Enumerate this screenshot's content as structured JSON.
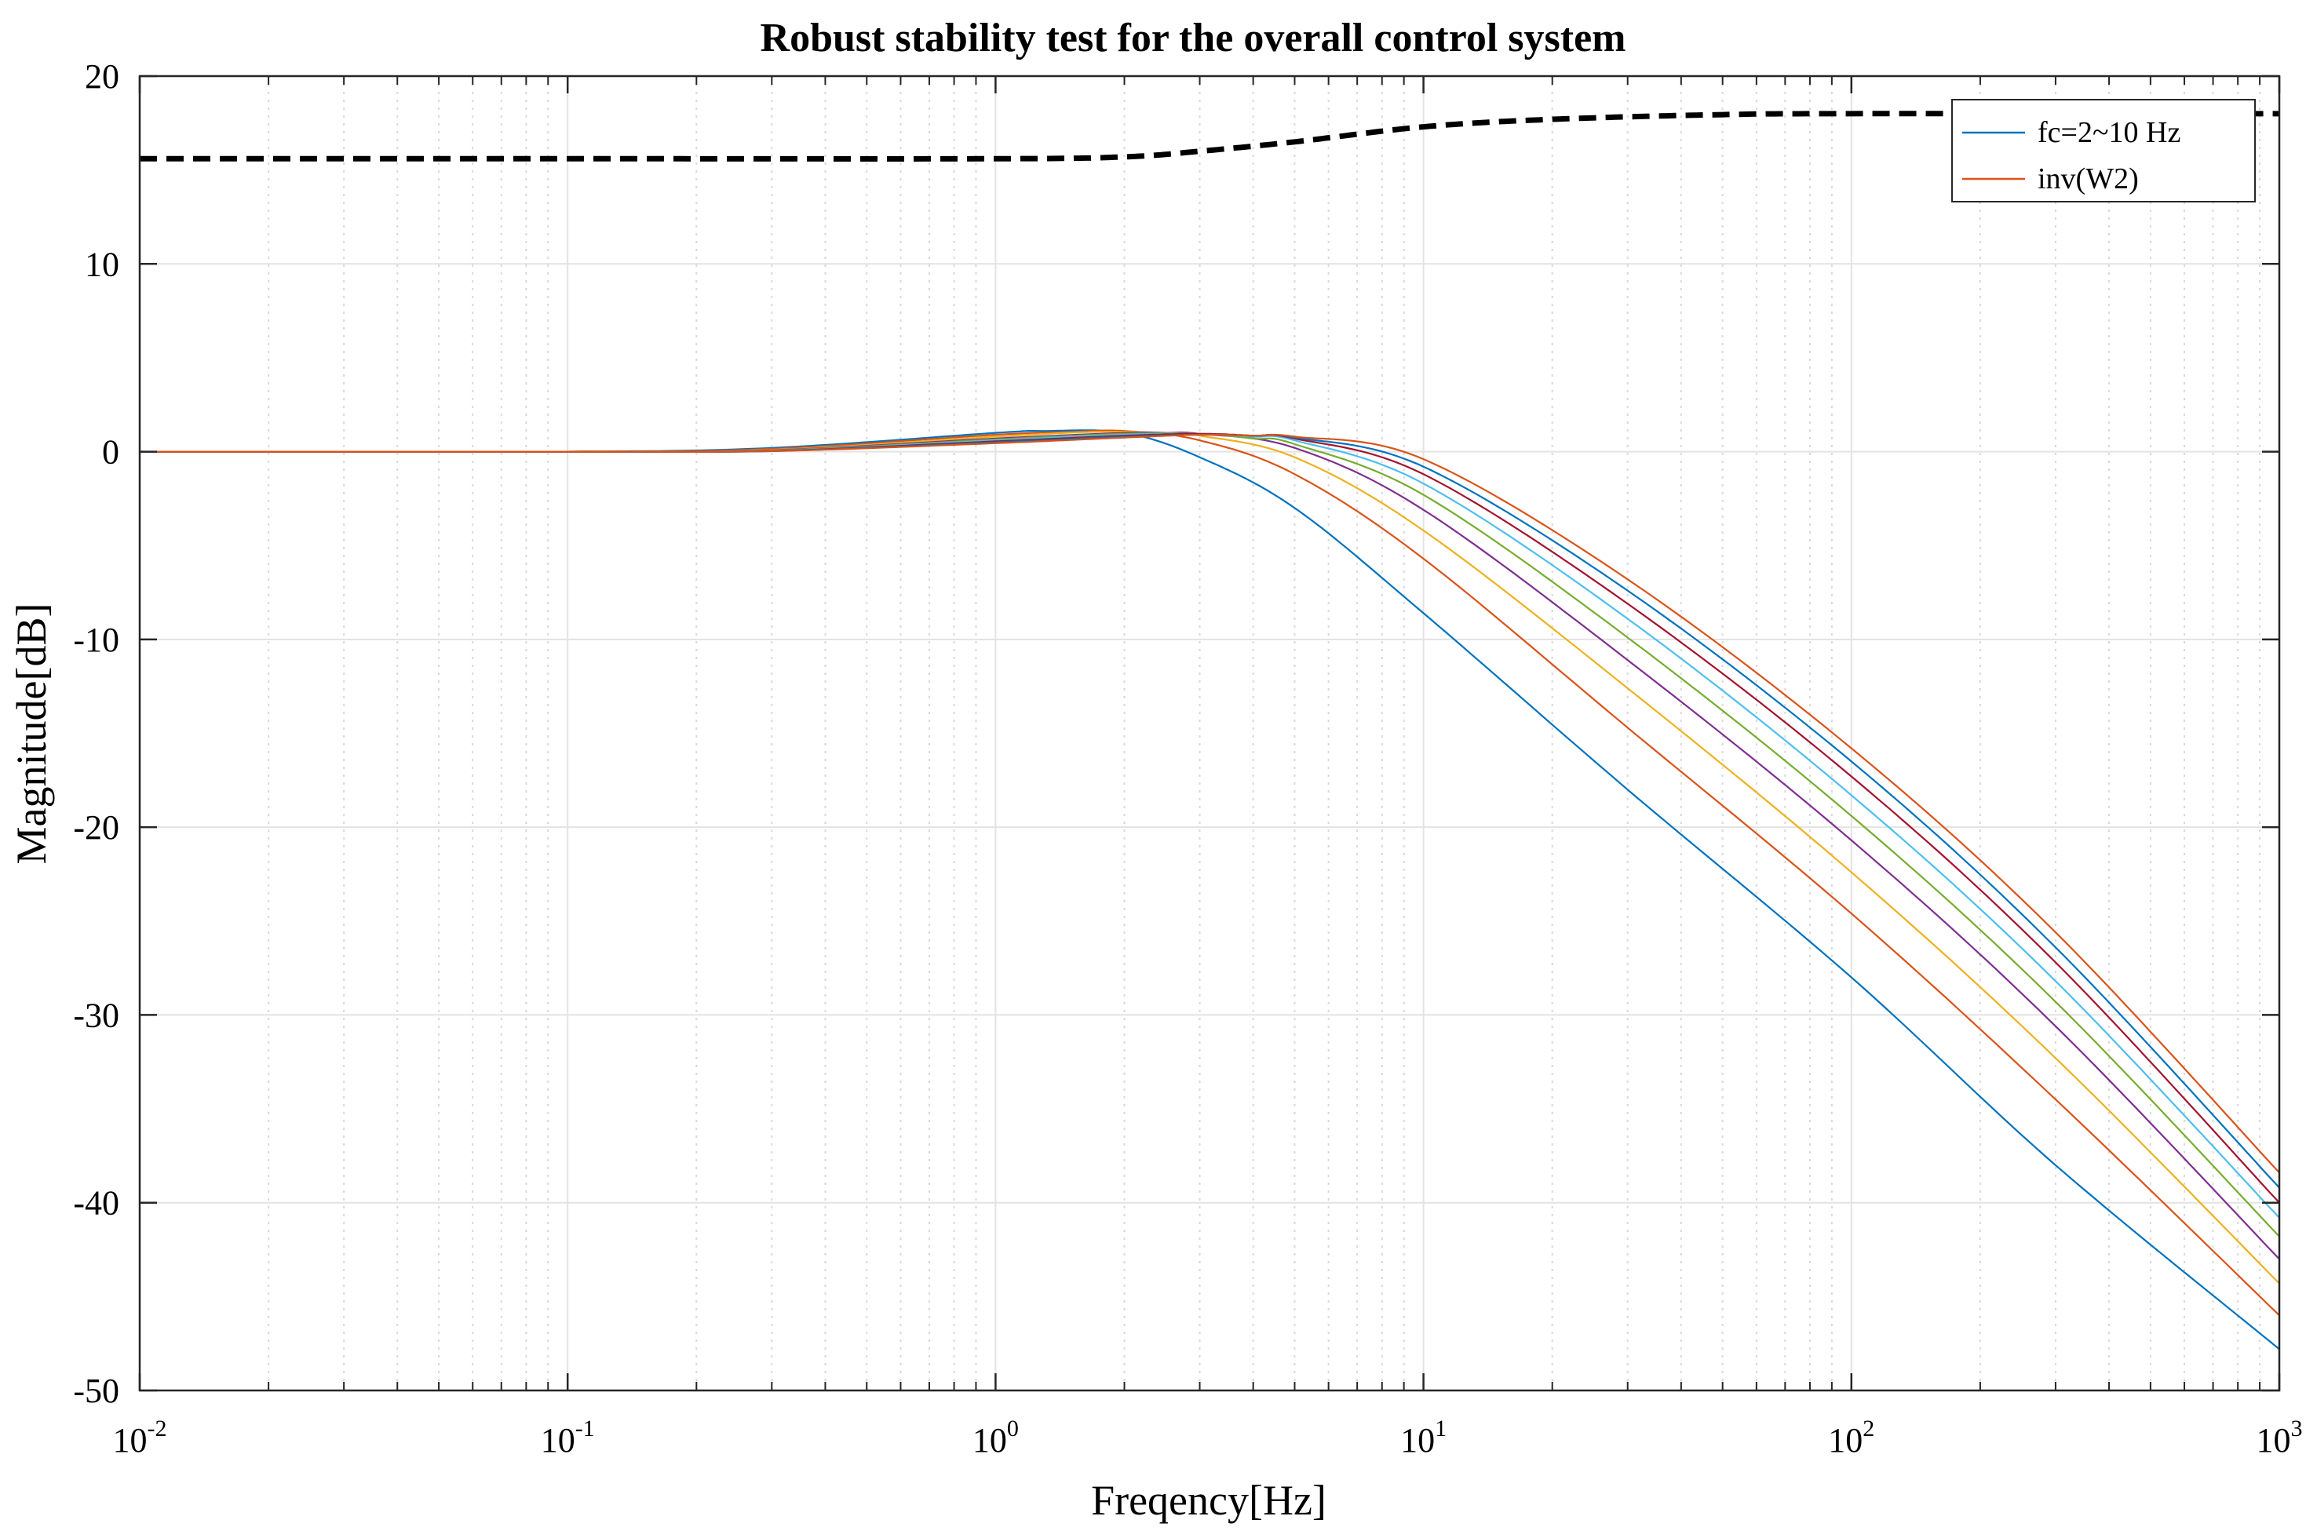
{
  "chart_data": {
    "type": "line",
    "title": "Robust stability test for the overall control system",
    "xlabel": "Freqency[Hz]",
    "ylabel": "Magnitude[dB]",
    "xscale": "log",
    "xlim": [
      0.01,
      1000
    ],
    "ylim": [
      -50,
      20
    ],
    "grid": true,
    "x_ticks": [
      {
        "base": "10",
        "exp": "-2",
        "value": 0.01
      },
      {
        "base": "10",
        "exp": "-1",
        "value": 0.1
      },
      {
        "base": "10",
        "exp": "0",
        "value": 1
      },
      {
        "base": "10",
        "exp": "1",
        "value": 10
      },
      {
        "base": "10",
        "exp": "2",
        "value": 100
      },
      {
        "base": "10",
        "exp": "3",
        "value": 1000
      }
    ],
    "y_ticks": [
      {
        "label": "20",
        "value": 20
      },
      {
        "label": "10",
        "value": 10
      },
      {
        "label": "0",
        "value": 0
      },
      {
        "label": "-10",
        "value": -10
      },
      {
        "label": "-20",
        "value": -20
      },
      {
        "label": "-30",
        "value": -30
      },
      {
        "label": "-40",
        "value": -40
      },
      {
        "label": "-50",
        "value": -50
      }
    ],
    "legend": {
      "position": "top-right",
      "entries": [
        {
          "label": "fc=2~10 Hz",
          "color": "#0072BD"
        },
        {
          "label": "inv(W2)",
          "color": "#D95319"
        }
      ]
    },
    "series": [
      {
        "name": "fc=2 Hz",
        "fc": 2,
        "color": "#0072BD",
        "style": "solid",
        "x": [
          0.01,
          0.1,
          0.3,
          1,
          1.3,
          2,
          3,
          5,
          10,
          30,
          100,
          300,
          1000
        ],
        "y": [
          0,
          0,
          0.2,
          1.0,
          1.1,
          1.0,
          -0.3,
          -3.0,
          -8.6,
          -18.0,
          -28.0,
          -38.0,
          -47.8
        ]
      },
      {
        "name": "fc=3 Hz",
        "fc": 3,
        "color": "#D95319",
        "style": "solid",
        "x": [
          0.01,
          0.1,
          0.3,
          1,
          1.5,
          2,
          3,
          5,
          10,
          30,
          100,
          300,
          1000
        ],
        "y": [
          0,
          0,
          0.15,
          0.9,
          1.05,
          1.1,
          0.6,
          -1.2,
          -5.7,
          -14.7,
          -24.6,
          -34.5,
          -46.0
        ]
      },
      {
        "name": "fc=4 Hz",
        "fc": 4,
        "color": "#EDB120",
        "style": "solid",
        "x": [
          0.01,
          0.1,
          0.3,
          1,
          1.7,
          2.5,
          3,
          5,
          10,
          30,
          100,
          300,
          1000
        ],
        "y": [
          0,
          0,
          0.1,
          0.8,
          1.05,
          1.0,
          0.85,
          -0.3,
          -4.2,
          -12.6,
          -22.4,
          -32.3,
          -44.3
        ]
      },
      {
        "name": "fc=5 Hz",
        "fc": 5,
        "color": "#7E2F8E",
        "style": "solid",
        "x": [
          0.01,
          0.1,
          0.3,
          1,
          2,
          2.5,
          3,
          5,
          10,
          30,
          100,
          300,
          1000
        ],
        "y": [
          0,
          0,
          0.08,
          0.7,
          1.0,
          1.0,
          0.95,
          0.2,
          -3.1,
          -11.1,
          -20.7,
          -30.6,
          -43.0
        ]
      },
      {
        "name": "fc=6 Hz",
        "fc": 6,
        "color": "#77AC30",
        "style": "solid",
        "x": [
          0.01,
          0.1,
          0.3,
          1,
          2,
          3,
          4,
          5,
          10,
          30,
          100,
          300,
          1000
        ],
        "y": [
          0,
          0,
          0.06,
          0.65,
          0.95,
          0.95,
          0.7,
          0.4,
          -2.3,
          -9.9,
          -19.4,
          -29.3,
          -41.8
        ]
      },
      {
        "name": "fc=7 Hz",
        "fc": 7,
        "color": "#4DBEEE",
        "style": "solid",
        "x": [
          0.01,
          0.1,
          0.3,
          1,
          2,
          3,
          4,
          5,
          10,
          30,
          100,
          300,
          1000
        ],
        "y": [
          0,
          0,
          0.05,
          0.6,
          0.9,
          0.95,
          0.8,
          0.6,
          -1.7,
          -8.9,
          -18.3,
          -28.2,
          -40.8
        ]
      },
      {
        "name": "fc=8 Hz",
        "fc": 8,
        "color": "#A2142F",
        "style": "solid",
        "x": [
          0.01,
          0.1,
          0.3,
          1,
          2,
          3,
          4,
          5,
          10,
          30,
          100,
          300,
          1000
        ],
        "y": [
          0,
          0,
          0.04,
          0.55,
          0.85,
          0.95,
          0.85,
          0.7,
          -1.2,
          -8.1,
          -17.3,
          -27.2,
          -40.0
        ]
      },
      {
        "name": "fc=9 Hz",
        "fc": 9,
        "color": "#0072BD",
        "style": "solid",
        "x": [
          0.01,
          0.1,
          0.3,
          1,
          2,
          3,
          4,
          5,
          10,
          30,
          100,
          300,
          1000
        ],
        "y": [
          0,
          0,
          0.03,
          0.5,
          0.8,
          0.9,
          0.85,
          0.75,
          -0.8,
          -7.4,
          -16.5,
          -26.4,
          -39.2
        ]
      },
      {
        "name": "fc=10 Hz",
        "fc": 10,
        "color": "#D95319",
        "style": "solid",
        "x": [
          0.01,
          0.1,
          0.3,
          1,
          2,
          3,
          4,
          5,
          10,
          30,
          100,
          300,
          1000
        ],
        "y": [
          0,
          0,
          0.03,
          0.45,
          0.75,
          0.9,
          0.85,
          0.8,
          -0.4,
          -6.8,
          -15.8,
          -25.6,
          -38.4
        ]
      },
      {
        "name": "inv(W2)",
        "color": "#000000",
        "style": "dashed",
        "x": [
          0.01,
          0.1,
          1,
          2,
          3,
          5,
          10,
          20,
          50,
          100,
          1000
        ],
        "y": [
          15.6,
          15.6,
          15.6,
          15.7,
          16.0,
          16.5,
          17.3,
          17.7,
          17.95,
          18.0,
          18.0
        ]
      }
    ]
  }
}
